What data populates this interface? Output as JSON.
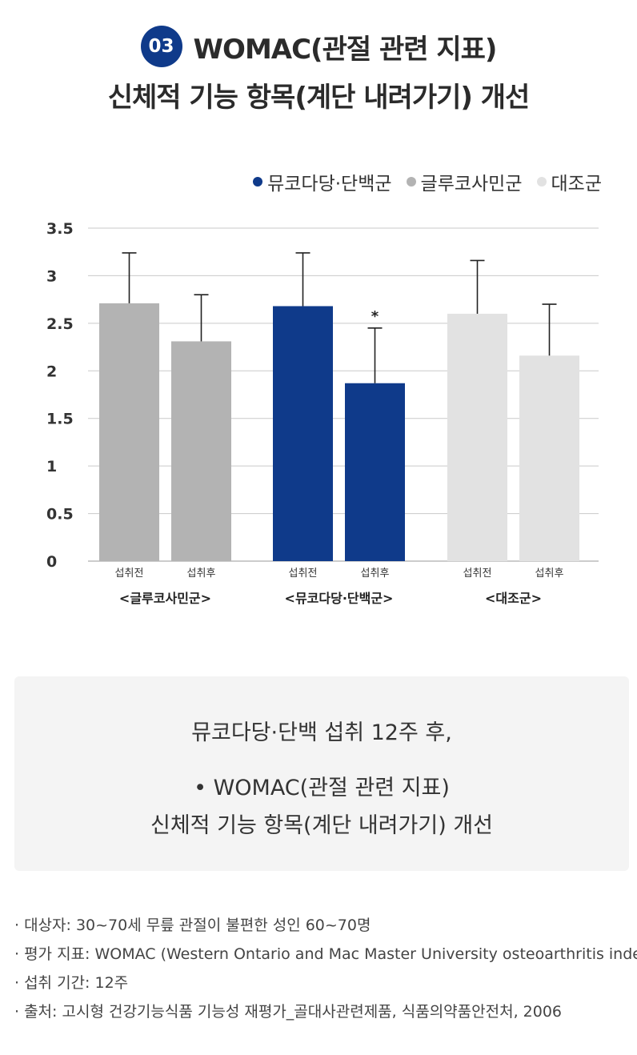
{
  "header": {
    "badge": "03",
    "title_line1": "WOMAC(관절 관련 지표)",
    "title_line2": "신체적 기능 항목(계단 내려가기) 개선"
  },
  "legend": [
    {
      "label": "뮤코다당·단백군",
      "color": "#0f3a8a"
    },
    {
      "label": "글루코사민군",
      "color": "#b3b3b3"
    },
    {
      "label": "대조군",
      "color": "#e2e2e2"
    }
  ],
  "chart_data": {
    "type": "bar",
    "y_ticks": [
      "3.5",
      "3",
      "2.5",
      "2",
      "1.5",
      "1",
      "0.5",
      "0"
    ],
    "ylim": [
      0,
      3.5
    ],
    "grid": true,
    "legend_position": "top-right",
    "groups": [
      {
        "label": "<글루코사민군>",
        "color": "#b3b3b3",
        "bars": [
          {
            "label": "섭취전",
            "value": 2.71,
            "error": 0.53,
            "annotation": ""
          },
          {
            "label": "섭취후",
            "value": 2.31,
            "error": 0.49,
            "annotation": ""
          }
        ]
      },
      {
        "label": "<뮤코다당·단백군>",
        "color": "#0f3a8a",
        "bars": [
          {
            "label": "섭취전",
            "value": 2.68,
            "error": 0.56,
            "annotation": ""
          },
          {
            "label": "섭취후",
            "value": 1.87,
            "error": 0.58,
            "annotation": "*"
          }
        ]
      },
      {
        "label": "<대조군>",
        "color": "#e2e2e2",
        "bars": [
          {
            "label": "섭취전",
            "value": 2.6,
            "error": 0.56,
            "annotation": ""
          },
          {
            "label": "섭취후",
            "value": 2.16,
            "error": 0.54,
            "annotation": ""
          }
        ]
      }
    ]
  },
  "summary": {
    "line1": "뮤코다당·단백 섭취 12주 후,",
    "line2": "• WOMAC(관절 관련 지표)",
    "line3": "신체적 기능 항목(계단 내려가기) 개선"
  },
  "notes": [
    "· 대상자: 30~70세 무릎 관절이 불편한 성인 60~70명",
    "· 평가 지표: WOMAC (Western Ontario and Mac Master University  osteoarthritis index)",
    "· 섭취 기간: 12주",
    "· 출처: 고시형 건강기능식품 기능성 재평가_골대사관련제품, 식품의약품안전처, 2006"
  ]
}
